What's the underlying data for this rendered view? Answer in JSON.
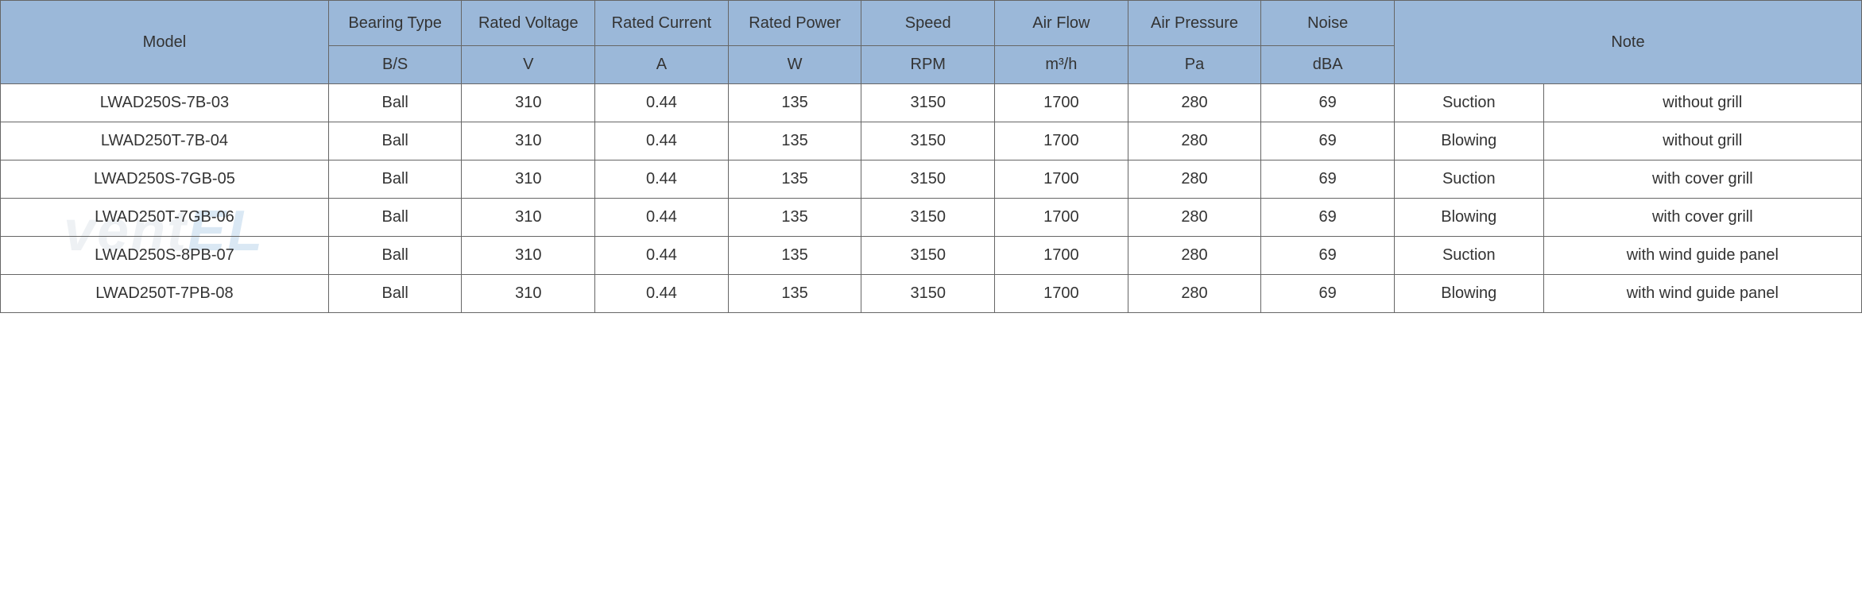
{
  "table": {
    "header_bg_color": "#9bb8d9",
    "border_color": "#666666",
    "text_color": "#333333",
    "font_size": 20,
    "columns": [
      {
        "label": "Model",
        "unit": null,
        "width_pct": 16.5
      },
      {
        "label": "Bearing Type",
        "unit": "B/S",
        "width_pct": 6.7
      },
      {
        "label": "Rated Voltage",
        "unit": "V",
        "width_pct": 6.7
      },
      {
        "label": "Rated Current",
        "unit": "A",
        "width_pct": 6.7
      },
      {
        "label": "Rated Power",
        "unit": "W",
        "width_pct": 6.7
      },
      {
        "label": "Speed",
        "unit": "RPM",
        "width_pct": 6.7
      },
      {
        "label": "Air Flow",
        "unit": "m³/h",
        "width_pct": 6.7
      },
      {
        "label": "Air Pressure",
        "unit": "Pa",
        "width_pct": 6.7
      },
      {
        "label": "Noise",
        "unit": "dBA",
        "width_pct": 6.7
      },
      {
        "label": "Note",
        "unit": null,
        "width_pct": 23.5
      }
    ],
    "rows": [
      {
        "model": "LWAD250S-7B-03",
        "bearing": "Ball",
        "voltage": "310",
        "current": "0.44",
        "power": "135",
        "speed": "3150",
        "airflow": "1700",
        "pressure": "280",
        "noise": "69",
        "note1": "Suction",
        "note2": "without grill"
      },
      {
        "model": "LWAD250T-7B-04",
        "bearing": "Ball",
        "voltage": "310",
        "current": "0.44",
        "power": "135",
        "speed": "3150",
        "airflow": "1700",
        "pressure": "280",
        "noise": "69",
        "note1": "Blowing",
        "note2": "without grill"
      },
      {
        "model": "LWAD250S-7GB-05",
        "bearing": "Ball",
        "voltage": "310",
        "current": "0.44",
        "power": "135",
        "speed": "3150",
        "airflow": "1700",
        "pressure": "280",
        "noise": "69",
        "note1": "Suction",
        "note2": "with cover grill"
      },
      {
        "model": "LWAD250T-7GB-06",
        "bearing": "Ball",
        "voltage": "310",
        "current": "0.44",
        "power": "135",
        "speed": "3150",
        "airflow": "1700",
        "pressure": "280",
        "noise": "69",
        "note1": "Blowing",
        "note2": "with cover grill"
      },
      {
        "model": "LWAD250S-8PB-07",
        "bearing": "Ball",
        "voltage": "310",
        "current": "0.44",
        "power": "135",
        "speed": "3150",
        "airflow": "1700",
        "pressure": "280",
        "noise": "69",
        "note1": "Suction",
        "note2": "with wind guide panel"
      },
      {
        "model": "LWAD250T-7PB-08",
        "bearing": "Ball",
        "voltage": "310",
        "current": "0.44",
        "power": "135",
        "speed": "3150",
        "airflow": "1700",
        "pressure": "280",
        "noise": "69",
        "note1": "Blowing",
        "note2": "with wind guide panel"
      }
    ]
  },
  "watermark": {
    "text_main": "vent",
    "text_tail": "EL",
    "color_main": "rgba(140, 160, 180, 0.15)",
    "color_tail": "rgba(70, 140, 200, 0.2)",
    "font_size": 72
  }
}
